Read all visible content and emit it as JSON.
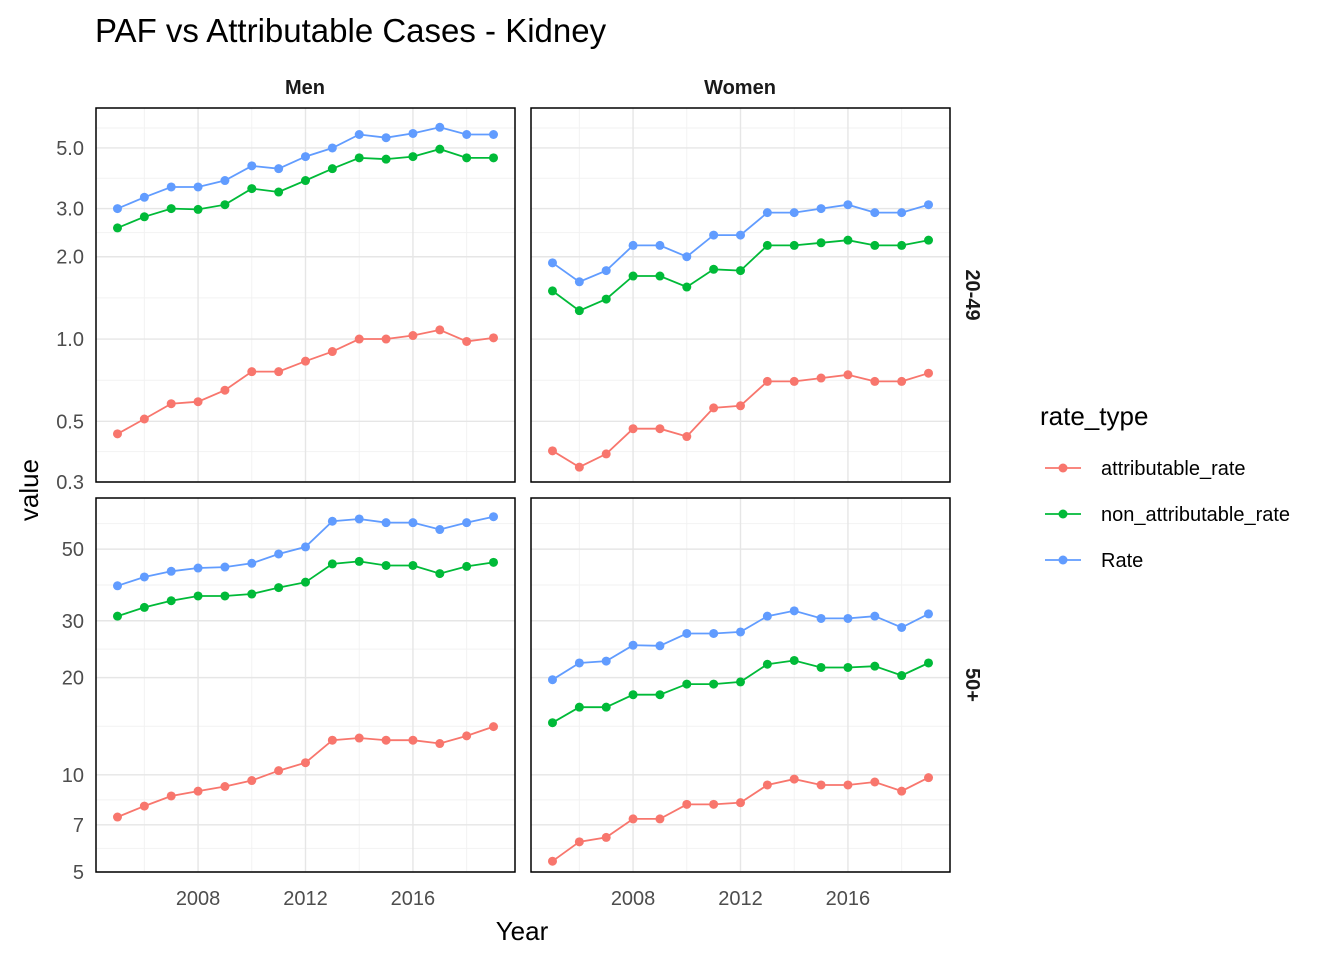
{
  "chart_data": {
    "type": "line",
    "title": "PAF vs Attributable Cases - Kidney",
    "xlabel": "Year",
    "ylabel": "value",
    "x": [
      2005,
      2006,
      2007,
      2008,
      2009,
      2010,
      2011,
      2012,
      2013,
      2014,
      2015,
      2016,
      2017,
      2018,
      2019
    ],
    "x_ticks": [
      "2008",
      "2012",
      "2016"
    ],
    "y_scale": "log",
    "grid": true,
    "legend_position": "right",
    "legend": {
      "title": "rate_type",
      "entries": [
        "attributable_rate",
        "non_attributable_rate",
        "Rate"
      ]
    },
    "colors": {
      "attributable_rate": "#F8766D",
      "non_attributable_rate": "#00BA38",
      "Rate": "#619CFF"
    },
    "facet_columns": [
      "Men",
      "Women"
    ],
    "facet_rows": [
      "20-49",
      "50+"
    ],
    "rows": [
      {
        "label": "20-49",
        "ylim": [
          0.3,
          7.0
        ],
        "y_ticks": [
          "0.3",
          "0.5",
          "1.0",
          "2.0",
          "3.0",
          "5.0"
        ],
        "panels": [
          {
            "sex": "Men",
            "series": [
              {
                "name": "attributable_rate",
                "values": [
                  0.45,
                  0.51,
                  0.58,
                  0.59,
                  0.65,
                  0.76,
                  0.76,
                  0.83,
                  0.9,
                  1.0,
                  1.0,
                  1.03,
                  1.08,
                  0.98,
                  1.01
                ]
              },
              {
                "name": "non_attributable_rate",
                "values": [
                  2.55,
                  2.8,
                  3.0,
                  2.98,
                  3.1,
                  3.55,
                  3.45,
                  3.8,
                  4.2,
                  4.6,
                  4.55,
                  4.65,
                  4.95,
                  4.6,
                  4.6
                ]
              },
              {
                "name": "Rate",
                "values": [
                  3.0,
                  3.3,
                  3.6,
                  3.6,
                  3.8,
                  4.3,
                  4.2,
                  4.65,
                  5.0,
                  5.6,
                  5.45,
                  5.65,
                  5.95,
                  5.6,
                  5.6
                ]
              }
            ]
          },
          {
            "sex": "Women",
            "series": [
              {
                "name": "attributable_rate",
                "values": [
                  0.39,
                  0.34,
                  0.38,
                  0.47,
                  0.47,
                  0.44,
                  0.56,
                  0.57,
                  0.7,
                  0.7,
                  0.72,
                  0.74,
                  0.7,
                  0.7,
                  0.75
                ]
              },
              {
                "name": "non_attributable_rate",
                "values": [
                  1.5,
                  1.27,
                  1.4,
                  1.7,
                  1.7,
                  1.55,
                  1.8,
                  1.78,
                  2.2,
                  2.2,
                  2.25,
                  2.3,
                  2.2,
                  2.2,
                  2.3
                ]
              },
              {
                "name": "Rate",
                "values": [
                  1.9,
                  1.62,
                  1.78,
                  2.2,
                  2.2,
                  2.0,
                  2.4,
                  2.4,
                  2.9,
                  2.9,
                  3.0,
                  3.1,
                  2.9,
                  2.9,
                  3.1
                ]
              }
            ]
          }
        ]
      },
      {
        "label": "50+",
        "ylim": [
          5.0,
          72.0
        ],
        "y_ticks": [
          "5",
          "7",
          "10",
          "20",
          "30",
          "50"
        ],
        "panels": [
          {
            "sex": "Men",
            "series": [
              {
                "name": "attributable_rate",
                "values": [
                  7.4,
                  8.0,
                  8.6,
                  8.9,
                  9.2,
                  9.6,
                  10.3,
                  10.9,
                  12.8,
                  13.0,
                  12.8,
                  12.8,
                  12.5,
                  13.2,
                  14.1
                ]
              },
              {
                "name": "non_attributable_rate",
                "values": [
                  31.0,
                  33.0,
                  34.6,
                  35.8,
                  35.8,
                  36.3,
                  38.0,
                  39.5,
                  45.0,
                  45.8,
                  44.5,
                  44.5,
                  42.0,
                  44.2,
                  45.5
                ]
              },
              {
                "name": "Rate",
                "values": [
                  38.5,
                  41.0,
                  42.7,
                  43.7,
                  44.0,
                  45.2,
                  48.3,
                  50.8,
                  61.0,
                  62.0,
                  60.4,
                  60.4,
                  57.5,
                  60.4,
                  63.0
                ]
              }
            ]
          },
          {
            "sex": "Women",
            "series": [
              {
                "name": "attributable_rate",
                "values": [
                  5.4,
                  6.2,
                  6.4,
                  7.3,
                  7.3,
                  8.1,
                  8.1,
                  8.2,
                  9.3,
                  9.7,
                  9.3,
                  9.3,
                  9.5,
                  8.9,
                  9.8
                ]
              },
              {
                "name": "non_attributable_rate",
                "values": [
                  14.5,
                  16.2,
                  16.2,
                  17.7,
                  17.7,
                  19.1,
                  19.1,
                  19.4,
                  22.0,
                  22.6,
                  21.5,
                  21.5,
                  21.7,
                  20.3,
                  22.2
                ]
              },
              {
                "name": "Rate",
                "values": [
                  19.7,
                  22.2,
                  22.5,
                  25.2,
                  25.1,
                  27.4,
                  27.4,
                  27.7,
                  31.0,
                  32.2,
                  30.5,
                  30.5,
                  31.0,
                  28.6,
                  31.5
                ]
              }
            ]
          }
        ]
      }
    ]
  }
}
